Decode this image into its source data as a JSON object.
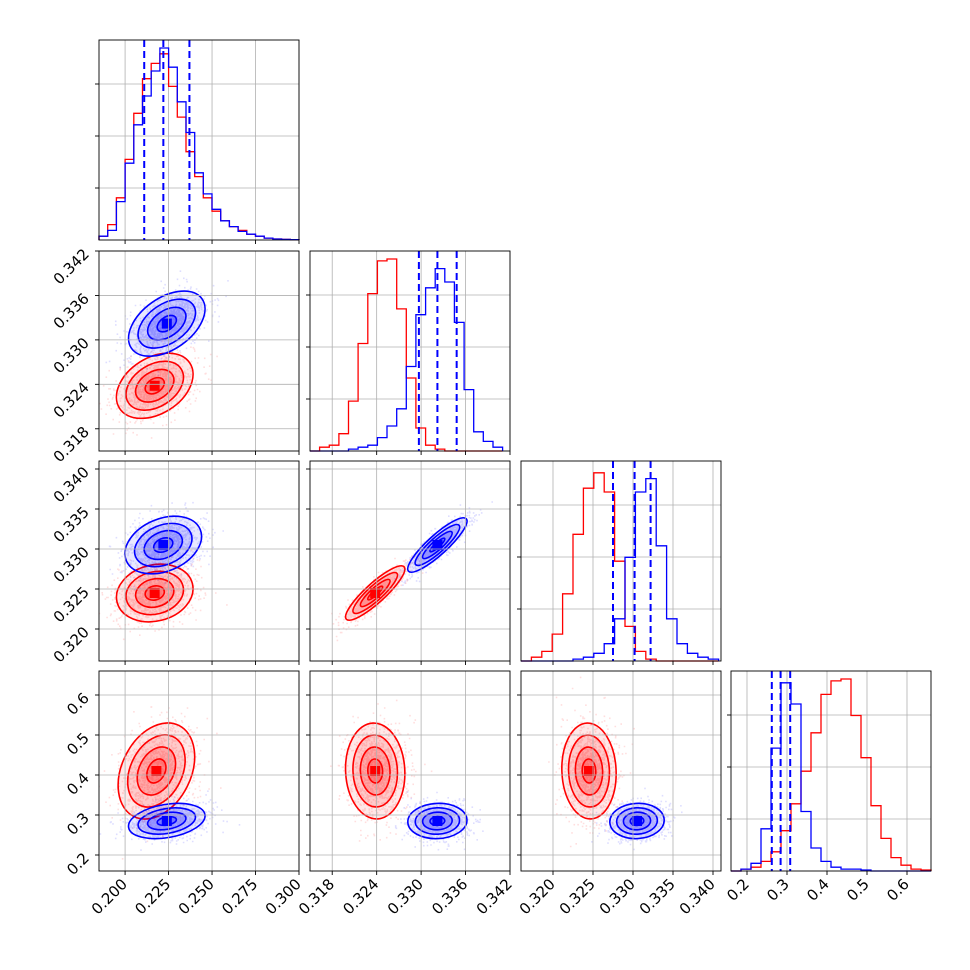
{
  "chart_data": {
    "type": "corner",
    "grid": true,
    "series": [
      {
        "name": "",
        "color": "#ff0000"
      },
      {
        "name": "",
        "color": "#0000ff"
      }
    ],
    "parameters": [
      {
        "index": 0,
        "range": [
          0.185,
          0.3
        ],
        "ticks": [
          "0.200",
          "0.225",
          "0.250",
          "0.275",
          "0.300"
        ],
        "blue_quantiles": [
          0.211,
          0.222,
          0.237
        ]
      },
      {
        "index": 1,
        "range": [
          0.315,
          0.342
        ],
        "ticks": [
          "0.318",
          "0.324",
          "0.330",
          "0.336",
          "0.342"
        ],
        "blue_quantiles": [
          0.3297,
          0.3322,
          0.3348
        ]
      },
      {
        "index": 2,
        "range": [
          0.316,
          0.341
        ],
        "ticks": [
          "0.320",
          "0.325",
          "0.330",
          "0.335",
          "0.340"
        ],
        "blue_quantiles": [
          0.3275,
          0.3302,
          0.3322
        ]
      },
      {
        "index": 3,
        "range": [
          0.16,
          0.66
        ],
        "ticks": [
          "0.2",
          "0.3",
          "0.4",
          "0.5",
          "0.6"
        ],
        "blue_quantiles": [
          0.262,
          0.284,
          0.308
        ]
      }
    ],
    "histograms": [
      {
        "param": 0,
        "bin_edges": [
          0.185,
          0.19,
          0.195,
          0.2,
          0.205,
          0.21,
          0.215,
          0.22,
          0.225,
          0.23,
          0.235,
          0.24,
          0.245,
          0.25,
          0.255,
          0.26,
          0.265,
          0.27,
          0.275,
          0.28,
          0.285,
          0.29,
          0.295,
          0.3
        ],
        "red": [
          0.02,
          0.08,
          0.22,
          0.42,
          0.66,
          0.84,
          0.92,
          0.97,
          0.8,
          0.64,
          0.46,
          0.33,
          0.22,
          0.15,
          0.1,
          0.07,
          0.05,
          0.03,
          0.02,
          0.01,
          0.005,
          0.003,
          0.002
        ],
        "blue": [
          0.02,
          0.05,
          0.2,
          0.4,
          0.6,
          0.75,
          0.88,
          1.0,
          0.9,
          0.72,
          0.56,
          0.35,
          0.24,
          0.16,
          0.1,
          0.07,
          0.045,
          0.03,
          0.02,
          0.01,
          0.005,
          0.003,
          0.002
        ]
      },
      {
        "param": 1,
        "bin_edges": [
          0.315,
          0.3163,
          0.3176,
          0.3189,
          0.3202,
          0.3215,
          0.3228,
          0.3241,
          0.3254,
          0.3267,
          0.328,
          0.3293,
          0.3306,
          0.3319,
          0.3332,
          0.3345,
          0.3358,
          0.3371,
          0.3384,
          0.3397,
          0.341
        ],
        "red": [
          0,
          0.02,
          0.03,
          0.09,
          0.26,
          0.56,
          0.82,
          0.99,
          1.0,
          0.74,
          0.38,
          0.12,
          0.03,
          0.01,
          0,
          0,
          0,
          0,
          0,
          0
        ],
        "blue": [
          0,
          0,
          0,
          0,
          0.01,
          0.02,
          0.03,
          0.07,
          0.13,
          0.22,
          0.44,
          0.71,
          0.85,
          0.95,
          0.88,
          0.67,
          0.32,
          0.1,
          0.05,
          0.02
        ]
      },
      {
        "param": 2,
        "bin_edges": [
          0.316,
          0.3173,
          0.3186,
          0.3199,
          0.3212,
          0.3225,
          0.3238,
          0.3251,
          0.3264,
          0.3277,
          0.329,
          0.3303,
          0.3316,
          0.3329,
          0.3342,
          0.3355,
          0.3368,
          0.3381,
          0.3394,
          0.3407
        ],
        "red": [
          0,
          0.02,
          0.05,
          0.14,
          0.35,
          0.66,
          0.9,
          0.98,
          0.88,
          0.52,
          0.18,
          0.05,
          0.01,
          0,
          0,
          0,
          0,
          0,
          0
        ],
        "blue": [
          0,
          0,
          0,
          0,
          0,
          0.01,
          0.02,
          0.04,
          0.09,
          0.22,
          0.54,
          0.88,
          0.95,
          0.6,
          0.22,
          0.09,
          0.04,
          0.02,
          0.01
        ]
      },
      {
        "param": 3,
        "bin_edges": [
          0.16,
          0.185,
          0.21,
          0.235,
          0.26,
          0.285,
          0.31,
          0.335,
          0.36,
          0.385,
          0.41,
          0.435,
          0.46,
          0.485,
          0.51,
          0.535,
          0.56,
          0.585,
          0.61,
          0.635,
          0.66
        ],
        "red": [
          0,
          0.01,
          0.02,
          0.05,
          0.1,
          0.21,
          0.35,
          0.52,
          0.72,
          0.92,
          0.99,
          1.0,
          0.81,
          0.59,
          0.34,
          0.17,
          0.07,
          0.03,
          0.01,
          0.005
        ],
        "blue": [
          0,
          0.01,
          0.04,
          0.22,
          0.64,
          0.98,
          0.87,
          0.31,
          0.12,
          0.05,
          0.02,
          0.01,
          0.01,
          0.005,
          0,
          0,
          0,
          0,
          0,
          0
        ]
      }
    ],
    "pairs": [
      {
        "x": 0,
        "y": 1,
        "red": {
          "mean": [
            0.217,
            0.3238
          ],
          "sd": [
            0.011,
            0.0022
          ],
          "rho": 0.35
        },
        "blue": {
          "mean": [
            0.224,
            0.3322
          ],
          "sd": [
            0.011,
            0.0022
          ],
          "rho": 0.45
        }
      },
      {
        "x": 0,
        "y": 2,
        "red": {
          "mean": [
            0.217,
            0.3245
          ],
          "sd": [
            0.011,
            0.0018
          ],
          "rho": 0.15
        },
        "blue": {
          "mean": [
            0.222,
            0.3305
          ],
          "sd": [
            0.011,
            0.0018
          ],
          "rho": 0.3
        }
      },
      {
        "x": 1,
        "y": 2,
        "red": {
          "mean": [
            0.3238,
            0.3245
          ],
          "sd": [
            0.002,
            0.0017
          ],
          "rho": 0.88
        },
        "blue": {
          "mean": [
            0.3322,
            0.3305
          ],
          "sd": [
            0.002,
            0.0017
          ],
          "rho": 0.88
        }
      },
      {
        "x": 0,
        "y": 3,
        "red": {
          "mean": [
            0.218,
            0.41
          ],
          "sd": [
            0.011,
            0.06
          ],
          "rho": 0.3
        },
        "blue": {
          "mean": [
            0.224,
            0.285
          ],
          "sd": [
            0.011,
            0.022
          ],
          "rho": 0.3
        }
      },
      {
        "x": 1,
        "y": 3,
        "red": {
          "mean": [
            0.3238,
            0.41
          ],
          "sd": [
            0.002,
            0.06
          ],
          "rho": -0.05
        },
        "blue": {
          "mean": [
            0.3322,
            0.285
          ],
          "sd": [
            0.002,
            0.022
          ],
          "rho": 0.05
        }
      },
      {
        "x": 2,
        "y": 3,
        "red": {
          "mean": [
            0.3245,
            0.41
          ],
          "sd": [
            0.0017,
            0.06
          ],
          "rho": -0.05
        },
        "blue": {
          "mean": [
            0.3305,
            0.285
          ],
          "sd": [
            0.0017,
            0.022
          ],
          "rho": 0.05
        }
      }
    ],
    "contour_levels_sigma": [
      0.5,
      1.0,
      1.5,
      2.0
    ]
  }
}
